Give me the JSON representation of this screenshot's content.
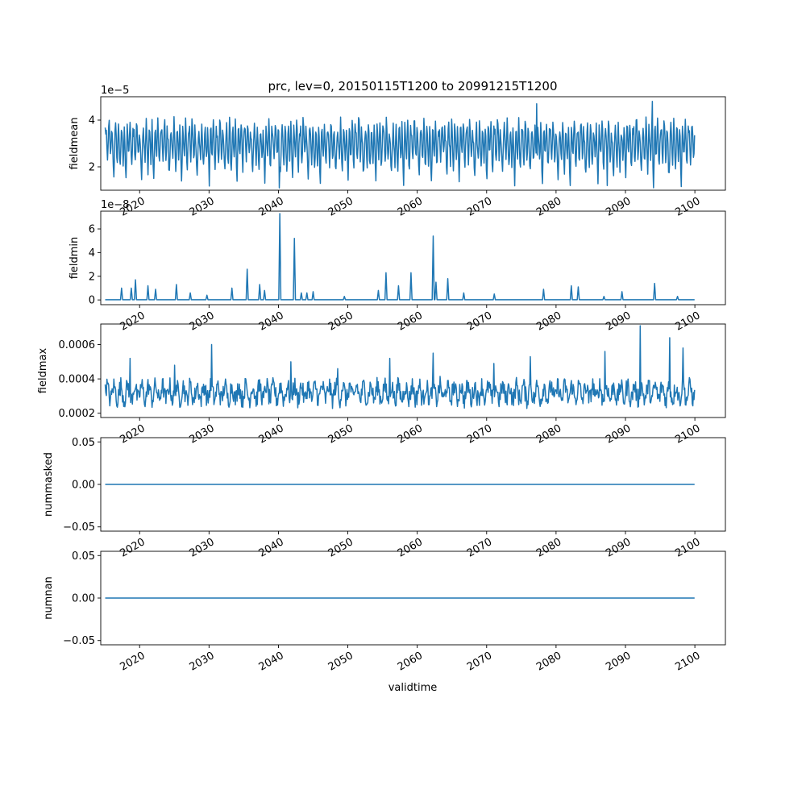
{
  "title": "prc, lev=0, 20150115T1200 to 20991215T1200",
  "xlabel": "validtime",
  "line_color": "#1f77b4",
  "chart_data": [
    {
      "type": "line",
      "id": "fieldmean",
      "ylabel": "fieldmean",
      "offset_text": "1e−5",
      "scale": 1e-05,
      "xlim": [
        2014.4,
        2104.4
      ],
      "ylim": [
        1e-05,
        5e-05
      ],
      "yticks": [
        2e-05,
        4e-05
      ],
      "ytick_labels": [
        "2",
        "4"
      ],
      "xticks": [
        2020,
        2030,
        2040,
        2050,
        2060,
        2070,
        2080,
        2090,
        2100
      ],
      "xtick_labels": [
        "2020",
        "2030",
        "2040",
        "2050",
        "2060",
        "2070",
        "2080",
        "2090",
        "2100"
      ],
      "series": [
        {
          "x_start": 2015.04,
          "x_step": 0.08333,
          "values": [
            3.6e-05,
            3.5e-05,
            3.5e-05,
            2.6e-05,
            2.2e-05,
            2.8e-05,
            3.9e-05,
            3.8e-05,
            3.1e-05,
            2.4e-05,
            2.7e-05,
            3.6e-05,
            3.3e-05,
            3e-05,
            2e-05,
            1.7e-05,
            2.5e-05,
            3.4e-05,
            3.7e-05,
            3.2e-05,
            2.6e-05,
            2.2e-05,
            3.1e-05,
            3.9e-05,
            3.3e-05,
            2.4e-05,
            1.9e-05,
            2.6e-05,
            3.6e-05,
            3.5e-05,
            2.9e-05,
            2.2e-05,
            2.8e-05,
            3.8e-05,
            3.1e-05,
            2e-05,
            1.3e-05,
            2.4e-05,
            3.7e-05,
            3.5e-05,
            2.7e-05,
            2.5e-05,
            3.2e-05,
            4e-05,
            3.4e-05,
            2.3e-05,
            2e-05,
            2.9e-05
          ]
        }
      ],
      "note_series_repeat": "seasonal cycle 2015-2100"
    },
    {
      "type": "line",
      "id": "fieldmin",
      "ylabel": "fieldmin",
      "offset_text": "1e−8",
      "scale": 1e-08,
      "xlim": [
        2014.4,
        2104.4
      ],
      "ylim": [
        -4e-09,
        7.5e-08
      ],
      "yticks": [
        0,
        2e-08,
        4e-08,
        6e-08
      ],
      "ytick_labels": [
        "0",
        "2",
        "4",
        "6"
      ],
      "xticks": [
        2020,
        2030,
        2040,
        2050,
        2060,
        2070,
        2080,
        2090,
        2100
      ],
      "xtick_labels": [
        "2020",
        "2030",
        "2040",
        "2050",
        "2060",
        "2070",
        "2080",
        "2090",
        "2100"
      ],
      "spikes": [
        [
          2017.4,
          1e-08
        ],
        [
          2018.8,
          1e-08
        ],
        [
          2019.4,
          1.7e-08
        ],
        [
          2021.2,
          1.2e-08
        ],
        [
          2022.3,
          9e-09
        ],
        [
          2025.3,
          1.3e-08
        ],
        [
          2027.3,
          6e-09
        ],
        [
          2029.7,
          4e-09
        ],
        [
          2033.3,
          1e-08
        ],
        [
          2035.5,
          2.6e-08
        ],
        [
          2037.3,
          1.3e-08
        ],
        [
          2038.0,
          8e-09
        ],
        [
          2040.2,
          7.3e-08
        ],
        [
          2042.3,
          5.2e-08
        ],
        [
          2043.3,
          6e-09
        ],
        [
          2044.1,
          6e-09
        ],
        [
          2045.0,
          7e-09
        ],
        [
          2049.5,
          3e-09
        ],
        [
          2054.4,
          8e-09
        ],
        [
          2055.5,
          2.3e-08
        ],
        [
          2057.3,
          1.2e-08
        ],
        [
          2059.1,
          2.3e-08
        ],
        [
          2062.3,
          5.4e-08
        ],
        [
          2062.7,
          1.5e-08
        ],
        [
          2064.4,
          1.8e-08
        ],
        [
          2066.7,
          6e-09
        ],
        [
          2071.1,
          5e-09
        ],
        [
          2078.2,
          9e-09
        ],
        [
          2082.2,
          1.2e-08
        ],
        [
          2083.2,
          1.1e-08
        ],
        [
          2086.9,
          3e-09
        ],
        [
          2089.5,
          7e-09
        ],
        [
          2094.2,
          1.4e-08
        ],
        [
          2097.5,
          3e-09
        ]
      ]
    },
    {
      "type": "line",
      "id": "fieldmax",
      "ylabel": "fieldmax",
      "offset_text": "",
      "xlim": [
        2014.4,
        2104.4
      ],
      "ylim": [
        0.000175,
        0.00072
      ],
      "yticks": [
        0.0002,
        0.0004,
        0.0006
      ],
      "ytick_labels": [
        "0.0002",
        "0.0004",
        "0.0006"
      ],
      "xticks": [
        2020,
        2030,
        2040,
        2050,
        2060,
        2070,
        2080,
        2090,
        2100
      ],
      "xtick_labels": [
        "2020",
        "2030",
        "2040",
        "2050",
        "2060",
        "2070",
        "2080",
        "2090",
        "2100"
      ],
      "base_level": 0.00032,
      "spikes": [
        [
          2018.6,
          0.00052
        ],
        [
          2025.0,
          0.00048
        ],
        [
          2030.4,
          0.0006
        ],
        [
          2041.8,
          0.0005
        ],
        [
          2048.5,
          0.00046
        ],
        [
          2056.0,
          0.00052
        ],
        [
          2062.3,
          0.00055
        ],
        [
          2071.0,
          0.00049
        ],
        [
          2076.3,
          0.00053
        ],
        [
          2087.0,
          0.00056
        ],
        [
          2092.1,
          0.00071
        ],
        [
          2096.4,
          0.00064
        ],
        [
          2098.3,
          0.00058
        ]
      ]
    },
    {
      "type": "line",
      "id": "nummasked",
      "ylabel": "nummasked",
      "offset_text": "",
      "xlim": [
        2014.4,
        2104.4
      ],
      "ylim": [
        -0.055,
        0.055
      ],
      "yticks": [
        -0.05,
        0.0,
        0.05
      ],
      "ytick_labels": [
        "−0.05",
        "0.00",
        "0.05"
      ],
      "xticks": [
        2020,
        2030,
        2040,
        2050,
        2060,
        2070,
        2080,
        2090,
        2100
      ],
      "xtick_labels": [
        "2020",
        "2030",
        "2040",
        "2050",
        "2060",
        "2070",
        "2080",
        "2090",
        "2100"
      ],
      "series": [
        {
          "x": [
            2015.04,
            2099.96
          ],
          "values": [
            0,
            0
          ]
        }
      ]
    },
    {
      "type": "line",
      "id": "numnan",
      "ylabel": "numnan",
      "offset_text": "",
      "xlim": [
        2014.4,
        2104.4
      ],
      "ylim": [
        -0.055,
        0.055
      ],
      "yticks": [
        -0.05,
        0.0,
        0.05
      ],
      "ytick_labels": [
        "−0.05",
        "0.00",
        "0.05"
      ],
      "xticks": [
        2020,
        2030,
        2040,
        2050,
        2060,
        2070,
        2080,
        2090,
        2100
      ],
      "xtick_labels": [
        "2020",
        "2030",
        "2040",
        "2050",
        "2060",
        "2070",
        "2080",
        "2090",
        "2100"
      ],
      "series": [
        {
          "x": [
            2015.04,
            2099.96
          ],
          "values": [
            0,
            0
          ]
        }
      ]
    }
  ]
}
